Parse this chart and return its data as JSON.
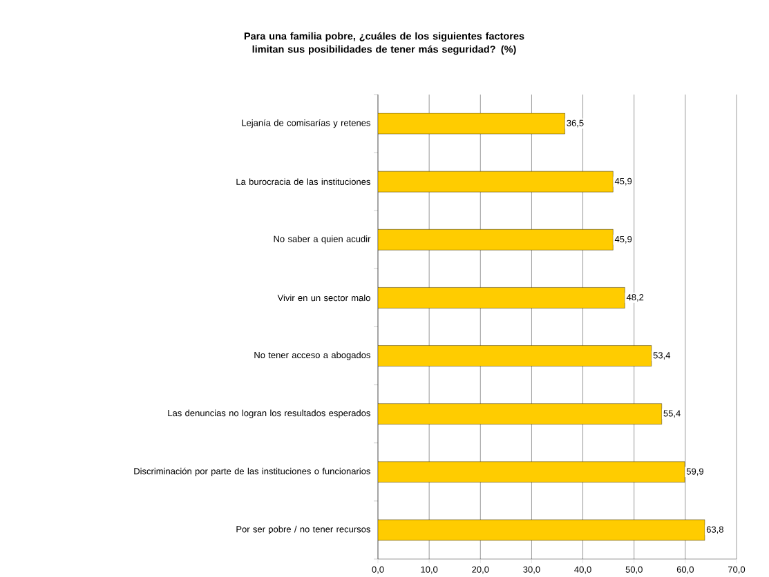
{
  "chart_data": {
    "type": "bar",
    "orientation": "horizontal",
    "title": "Para una familia pobre, ¿cuáles de los siguientes factores limitan sus posibilidades de tener más seguridad? (%)",
    "categories": [
      "Lejanía de comisarías y retenes",
      "La burocracia de las instituciones",
      "No saber a quien acudir",
      "Vivir en un sector malo",
      "No tener acceso a abogados",
      "Las denuncias no logran los resultados esperados",
      "Discriminación por parte de las instituciones o funcionarios",
      "Por ser pobre / no tener recursos"
    ],
    "values": [
      36.5,
      45.9,
      45.9,
      48.2,
      53.4,
      55.4,
      59.9,
      63.8
    ],
    "value_labels": [
      "36,5",
      "45,9",
      "45,9",
      "48,2",
      "53,4",
      "55,4",
      "59,9",
      "63,8"
    ],
    "color": "#ffcc00",
    "xlim": [
      0,
      70
    ],
    "xticks": [
      {
        "value": 0,
        "label": "0,0"
      },
      {
        "value": 10,
        "label": "10,0"
      },
      {
        "value": 20,
        "label": "20,0"
      },
      {
        "value": 30,
        "label": "30,0"
      },
      {
        "value": 40,
        "label": "40,0"
      },
      {
        "value": 50,
        "label": "50,0"
      },
      {
        "value": 60,
        "label": "60,0"
      },
      {
        "value": 70,
        "label": "70,0"
      }
    ],
    "grid": "x"
  }
}
